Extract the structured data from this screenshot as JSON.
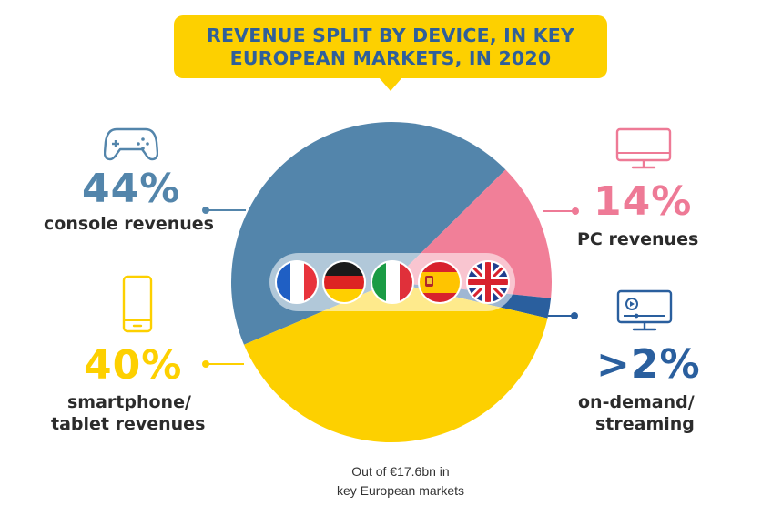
{
  "title": {
    "line1": "REVENUE SPLIT BY DEVICE, IN KEY",
    "line2": "EUROPEAN MARKETS, IN 2020"
  },
  "chart_data": {
    "type": "pie",
    "title": "REVENUE SPLIT BY DEVICE, IN KEY EUROPEAN MARKETS, IN 2020",
    "slices": [
      {
        "name": "console revenues",
        "value": 44,
        "color": "#5385ab"
      },
      {
        "name": "PC revenues",
        "value": 14,
        "color": "#f17f98"
      },
      {
        "name": "on-demand/ streaming",
        "value": 2,
        "color": "#2a5f9e"
      },
      {
        "name": "smartphone/ tablet revenues",
        "value": 40,
        "color": "#fdd000"
      }
    ]
  },
  "callouts": {
    "console": {
      "pct": "44%",
      "line1": "console revenues",
      "color": "#5385ab",
      "icon": "gamepad-icon"
    },
    "pc": {
      "pct": "14%",
      "line1": "PC revenues",
      "color": "#ee7a96",
      "icon": "monitor-icon"
    },
    "mobile": {
      "pct": "40%",
      "line1": "smartphone/",
      "line2": "tablet revenues",
      "color": "#fdd000",
      "icon": "smartphone-icon"
    },
    "streaming": {
      "pct": ">2%",
      "line1": "on-demand/",
      "line2": "streaming",
      "color": "#2a5f9e",
      "icon": "streaming-monitor-icon"
    }
  },
  "flags": [
    "france-flag-icon",
    "germany-flag-icon",
    "italy-flag-icon",
    "spain-flag-icon",
    "uk-flag-icon"
  ],
  "footnote": {
    "line1": "Out of €17.6bn in",
    "line2": "key European markets"
  }
}
